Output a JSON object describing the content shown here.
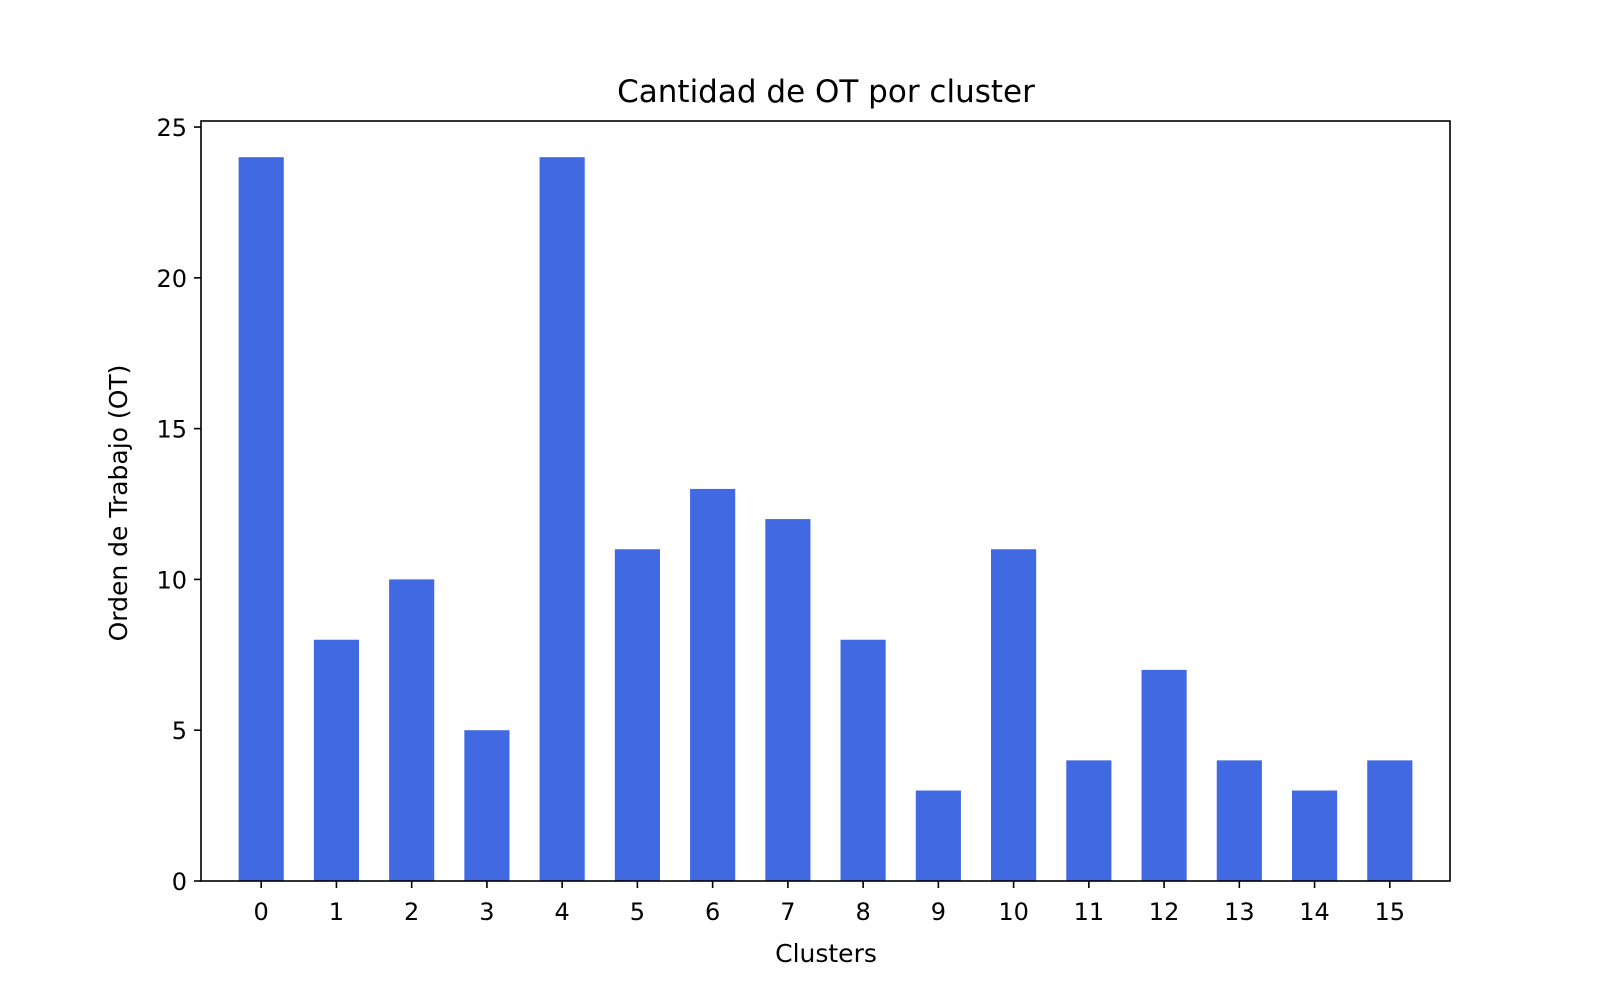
{
  "chart_data": {
    "type": "bar",
    "title": "Cantidad de OT por cluster",
    "xlabel": "Clusters",
    "ylabel": "Orden de Trabajo (OT)",
    "categories": [
      "0",
      "1",
      "2",
      "3",
      "4",
      "5",
      "6",
      "7",
      "8",
      "9",
      "10",
      "11",
      "12",
      "13",
      "14",
      "15"
    ],
    "values": [
      24,
      8,
      10,
      5,
      24,
      11,
      13,
      12,
      8,
      3,
      11,
      4,
      7,
      4,
      3,
      4
    ],
    "ylim": [
      0,
      25.2
    ],
    "yticks": [
      0,
      5,
      10,
      15,
      20,
      25
    ],
    "grid": false,
    "legend": "none",
    "bar_color": "#4169E1"
  }
}
